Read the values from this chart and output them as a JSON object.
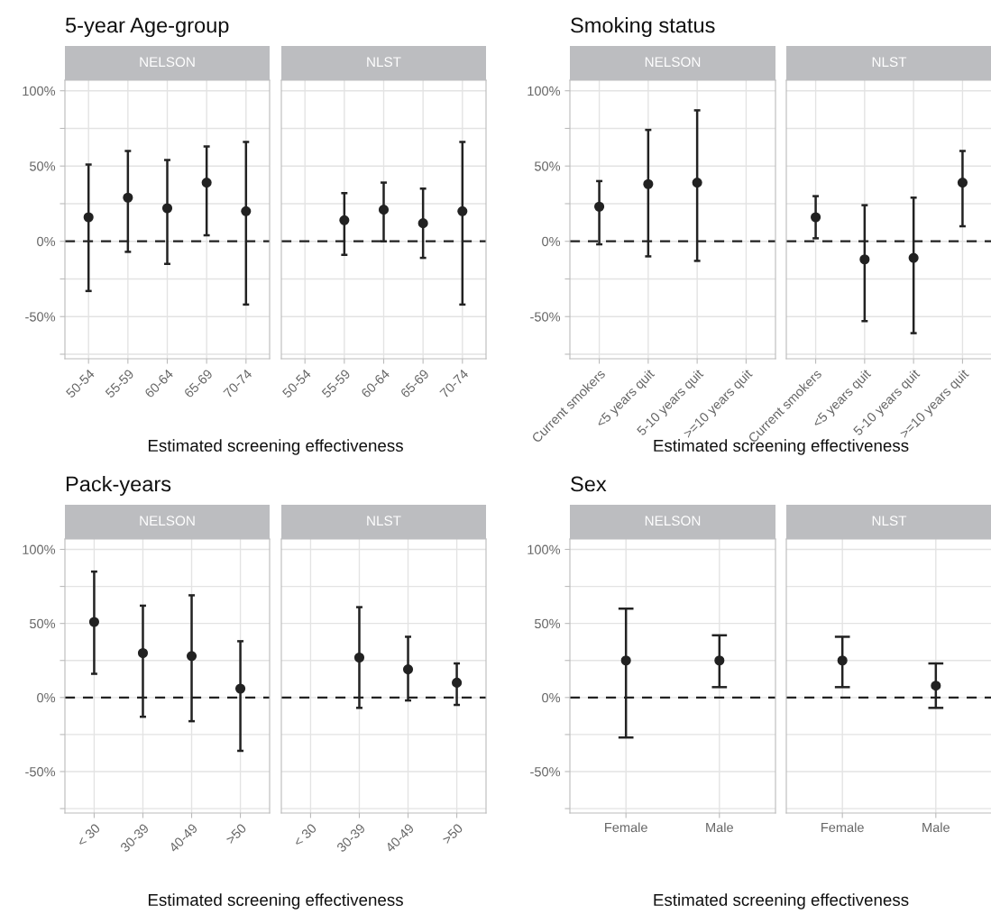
{
  "chart_data": [
    {
      "type": "scatter",
      "title": "5-year Age-group",
      "subtitle": "NELSON",
      "xlabel": "Estimated screening effectiveness",
      "categories": [
        "50-54",
        "55-59",
        "60-64",
        "65-69",
        "70-74"
      ],
      "values": [
        16,
        29,
        22,
        39,
        20
      ],
      "errors": [
        [
          -33,
          51
        ],
        [
          -7,
          60
        ],
        [
          -15,
          54
        ],
        [
          4,
          63
        ],
        [
          -42,
          66
        ]
      ],
      "color": "#222222",
      "marker": "circle",
      "ylim": [
        -78,
        107
      ],
      "yticks": [
        {
          "value": -75,
          "label": null
        },
        {
          "value": -50,
          "label": "-50%"
        },
        {
          "value": -25,
          "label": null
        },
        {
          "value": 0,
          "label": "0%"
        },
        {
          "value": 25,
          "label": null
        },
        {
          "value": 50,
          "label": "50%"
        },
        {
          "value": 75,
          "label": null
        },
        {
          "value": 100,
          "label": "100%"
        }
      ],
      "grid": true,
      "ref_lines": [
        {
          "axis": "y",
          "value": 0,
          "color": "#222222",
          "line_style": "dashed"
        }
      ]
    },
    {
      "type": "scatter",
      "subtitle": "NLST",
      "categories": [
        "50-54",
        "55-59",
        "60-64",
        "65-69",
        "70-74"
      ],
      "values": [
        null,
        14,
        21,
        12,
        20
      ],
      "errors": [
        null,
        [
          -9,
          32
        ],
        [
          0,
          39
        ],
        [
          -11,
          35
        ],
        [
          -42,
          66
        ]
      ],
      "color": "#222222",
      "marker": "circle",
      "ylim": [
        -78,
        107
      ],
      "yticks": [
        {
          "value": -75,
          "label": null
        },
        {
          "value": -50,
          "label": null
        },
        {
          "value": -25,
          "label": null
        },
        {
          "value": 0,
          "label": null
        },
        {
          "value": 25,
          "label": null
        },
        {
          "value": 50,
          "label": null
        },
        {
          "value": 75,
          "label": null
        },
        {
          "value": 100,
          "label": null
        }
      ],
      "grid": true,
      "tick_labels": "x",
      "ref_lines": [
        {
          "axis": "y",
          "value": 0,
          "color": "#222222",
          "line_style": "dashed"
        }
      ]
    },
    {
      "type": "scatter",
      "title": "Smoking status",
      "subtitle": "NELSON",
      "xlabel": "Estimated screening effectiveness",
      "categories": [
        "Current smokers",
        "<5 years quit",
        "5-10 years quit",
        ">=10 years quit"
      ],
      "values": [
        23,
        38,
        39,
        null
      ],
      "errors": [
        [
          -2,
          40
        ],
        [
          -10,
          74
        ],
        [
          -13,
          87
        ],
        null
      ],
      "color": "#222222",
      "marker": "circle",
      "ylim": [
        -78,
        107
      ],
      "yticks": [
        {
          "value": -75,
          "label": null
        },
        {
          "value": -50,
          "label": "-50%"
        },
        {
          "value": -25,
          "label": null
        },
        {
          "value": 0,
          "label": "0%"
        },
        {
          "value": 25,
          "label": null
        },
        {
          "value": 50,
          "label": "50%"
        },
        {
          "value": 75,
          "label": null
        },
        {
          "value": 100,
          "label": "100%"
        }
      ],
      "grid": true,
      "ref_lines": [
        {
          "axis": "y",
          "value": 0,
          "color": "#222222",
          "line_style": "dashed"
        }
      ]
    },
    {
      "type": "scatter",
      "subtitle": "NLST",
      "categories": [
        "Current smokers",
        "<5 years quit",
        "5-10 years quit",
        ">=10 years quit"
      ],
      "values": [
        16,
        -12,
        -11,
        39
      ],
      "errors": [
        [
          2,
          30
        ],
        [
          -53,
          24
        ],
        [
          -61,
          29
        ],
        [
          10,
          60
        ]
      ],
      "color": "#222222",
      "marker": "circle",
      "ylim": [
        -78,
        107
      ],
      "yticks": [
        {
          "value": -75,
          "label": null
        },
        {
          "value": -50,
          "label": null
        },
        {
          "value": -25,
          "label": null
        },
        {
          "value": 0,
          "label": null
        },
        {
          "value": 25,
          "label": null
        },
        {
          "value": 50,
          "label": null
        },
        {
          "value": 75,
          "label": null
        },
        {
          "value": 100,
          "label": null
        }
      ],
      "grid": true,
      "tick_labels": "x",
      "ref_lines": [
        {
          "axis": "y",
          "value": 0,
          "color": "#222222",
          "line_style": "dashed"
        }
      ]
    },
    {
      "type": "scatter",
      "title": "Pack-years",
      "subtitle": "NELSON",
      "xlabel": "Estimated screening effectiveness",
      "categories": [
        "< 30",
        "30-39",
        "40-49",
        ">50"
      ],
      "values": [
        51,
        30,
        28,
        6
      ],
      "errors": [
        [
          16,
          85
        ],
        [
          -13,
          62
        ],
        [
          -16,
          69
        ],
        [
          -36,
          38
        ]
      ],
      "color": "#222222",
      "marker": "circle",
      "ylim": [
        -78,
        107
      ],
      "yticks": [
        {
          "value": -75,
          "label": null
        },
        {
          "value": -50,
          "label": "-50%"
        },
        {
          "value": -25,
          "label": null
        },
        {
          "value": 0,
          "label": "0%"
        },
        {
          "value": 25,
          "label": null
        },
        {
          "value": 50,
          "label": "50%"
        },
        {
          "value": 75,
          "label": null
        },
        {
          "value": 100,
          "label": "100%"
        }
      ],
      "grid": true,
      "ref_lines": [
        {
          "axis": "y",
          "value": 0,
          "color": "#222222",
          "line_style": "dashed"
        }
      ]
    },
    {
      "type": "scatter",
      "subtitle": "NLST",
      "categories": [
        "< 30",
        "30-39",
        "40-49",
        ">50"
      ],
      "values": [
        null,
        27,
        19,
        10
      ],
      "errors": [
        null,
        [
          -7,
          61
        ],
        [
          -2,
          41
        ],
        [
          -5,
          23
        ]
      ],
      "color": "#222222",
      "marker": "circle",
      "ylim": [
        -78,
        107
      ],
      "yticks": [
        {
          "value": -75,
          "label": null
        },
        {
          "value": -50,
          "label": null
        },
        {
          "value": -25,
          "label": null
        },
        {
          "value": 0,
          "label": null
        },
        {
          "value": 25,
          "label": null
        },
        {
          "value": 50,
          "label": null
        },
        {
          "value": 75,
          "label": null
        },
        {
          "value": 100,
          "label": null
        }
      ],
      "grid": true,
      "tick_labels": "x",
      "ref_lines": [
        {
          "axis": "y",
          "value": 0,
          "color": "#222222",
          "line_style": "dashed"
        }
      ]
    },
    {
      "type": "scatter",
      "title": "Sex",
      "subtitle": "NELSON",
      "xlabel": "Estimated screening effectiveness",
      "categories": [
        "Female",
        "Male"
      ],
      "values": [
        25,
        25
      ],
      "errors": [
        [
          -27,
          60
        ],
        [
          7,
          42
        ]
      ],
      "color": "#222222",
      "marker": "circle",
      "ylim": [
        -78,
        107
      ],
      "yticks": [
        {
          "value": -75,
          "label": null
        },
        {
          "value": -50,
          "label": "-50%"
        },
        {
          "value": -25,
          "label": null
        },
        {
          "value": 0,
          "label": "0%"
        },
        {
          "value": 25,
          "label": null
        },
        {
          "value": 50,
          "label": "50%"
        },
        {
          "value": 75,
          "label": null
        },
        {
          "value": 100,
          "label": "100%"
        }
      ],
      "grid": true,
      "ref_lines": [
        {
          "axis": "y",
          "value": 0,
          "color": "#222222",
          "line_style": "dashed"
        }
      ]
    },
    {
      "type": "scatter",
      "subtitle": "NLST",
      "categories": [
        "Female",
        "Male"
      ],
      "values": [
        25,
        8
      ],
      "errors": [
        [
          7,
          41
        ],
        [
          -7,
          23
        ]
      ],
      "color": "#222222",
      "marker": "circle",
      "ylim": [
        -78,
        107
      ],
      "yticks": [
        {
          "value": -75,
          "label": null
        },
        {
          "value": -50,
          "label": null
        },
        {
          "value": -25,
          "label": null
        },
        {
          "value": 0,
          "label": null
        },
        {
          "value": 25,
          "label": null
        },
        {
          "value": 50,
          "label": null
        },
        {
          "value": 75,
          "label": null
        },
        {
          "value": 100,
          "label": null
        }
      ],
      "grid": true,
      "tick_labels": "x",
      "ref_lines": [
        {
          "axis": "y",
          "value": 0,
          "color": "#222222",
          "line_style": "dashed"
        }
      ]
    }
  ]
}
